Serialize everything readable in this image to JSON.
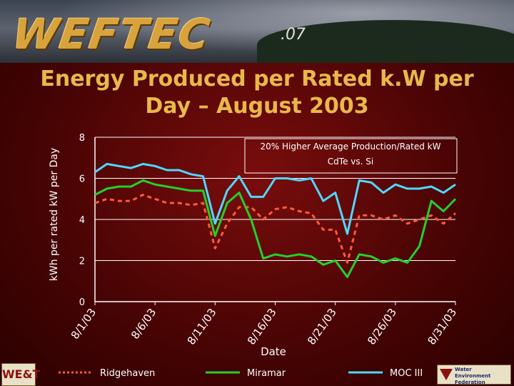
{
  "branding": {
    "logo_text": "WEFTEC",
    "logo_suffix": ".07",
    "footer_left_logo": "WE&T",
    "footer_right_logo_lines": [
      "Water Environment",
      "Federation"
    ]
  },
  "colors": {
    "title": "#e8b84a",
    "ridgehaven": "#ff5a3c",
    "miramar": "#22d12a",
    "moc_iii": "#4fd8ff",
    "grid": "#ffffff"
  },
  "chart_data": {
    "type": "line",
    "title": "Energy Produced per Rated k.W per Day – August 2003",
    "title_lines": [
      "Energy Produced per Rated k.W per",
      "Day – August 2003"
    ],
    "xlabel": "Date",
    "ylabel": "kWh per rated kW per Day",
    "ylim": [
      0,
      8
    ],
    "yticks": [
      "0",
      "2",
      "4",
      "6",
      "8"
    ],
    "grid": true,
    "x": [
      1,
      2,
      3,
      4,
      5,
      6,
      7,
      8,
      9,
      10,
      11,
      12,
      13,
      14,
      15,
      16,
      17,
      18,
      19,
      20,
      21,
      22,
      23,
      24,
      25,
      26,
      27,
      28,
      29,
      30,
      31
    ],
    "xtick_labels": [
      "8/1/03",
      "8/6/03",
      "8/11/03",
      "8/16/03",
      "8/21/03",
      "8/26/03",
      "8/31/03"
    ],
    "xtick_positions": [
      1,
      6,
      11,
      16,
      21,
      26,
      31
    ],
    "annotation_lines": [
      "20% Higher Average Production/Rated kW",
      "CdTe vs. Si"
    ],
    "legend_position": "bottom",
    "series": [
      {
        "name": "Ridgehaven",
        "style": "dashed",
        "color_key": "ridgehaven",
        "values": [
          4.8,
          5.0,
          4.9,
          4.9,
          5.2,
          5.0,
          4.8,
          4.8,
          4.7,
          4.8,
          2.6,
          3.8,
          4.6,
          4.6,
          4.0,
          4.5,
          4.6,
          4.4,
          4.3,
          3.5,
          3.5,
          1.9,
          4.2,
          4.2,
          4.0,
          4.2,
          3.8,
          4.0,
          4.2,
          3.8,
          4.3
        ]
      },
      {
        "name": "Miramar",
        "style": "solid",
        "color_key": "miramar",
        "values": [
          5.2,
          5.5,
          5.6,
          5.6,
          5.9,
          5.7,
          5.6,
          5.5,
          5.4,
          5.4,
          3.2,
          4.8,
          5.3,
          4.0,
          2.1,
          2.3,
          2.2,
          2.3,
          2.2,
          1.8,
          2.0,
          1.2,
          2.3,
          2.2,
          1.9,
          2.1,
          1.9,
          2.7,
          4.9,
          4.4,
          5.0
        ]
      },
      {
        "name": "MOC III",
        "style": "solid",
        "color_key": "moc_iii",
        "values": [
          6.3,
          6.7,
          6.6,
          6.5,
          6.7,
          6.6,
          6.4,
          6.4,
          6.2,
          6.1,
          3.8,
          5.4,
          6.1,
          5.1,
          5.1,
          6.0,
          6.0,
          5.9,
          6.0,
          4.9,
          5.3,
          3.3,
          5.9,
          5.8,
          5.3,
          5.7,
          5.5,
          5.5,
          5.6,
          5.3,
          5.7
        ]
      }
    ]
  }
}
